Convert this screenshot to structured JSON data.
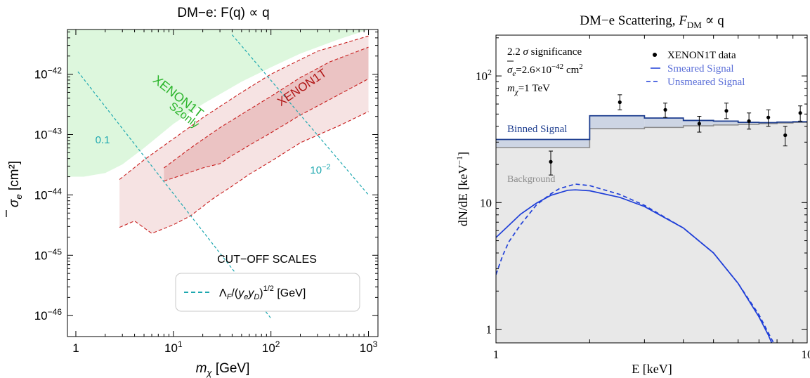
{
  "colors": {
    "green_fill": "#ddf7dd",
    "red_outer_fill": "#f6e3e3",
    "red_inner_fill": "#ebc3c3",
    "red_line": "#c81e1e",
    "cyan": "#1ea8b0",
    "green_text": "#2bb52b",
    "dark_red_text": "#b01515",
    "blue": "#1f3fd8",
    "navy": "#1d3d8f",
    "gray_line": "#8c8c8c",
    "bg_fill": "#e8e8e8",
    "signal_fill": "#cdd5e4"
  },
  "chart_data": [
    {
      "type": "line",
      "title_text": "DM−e:  F(q) ∝ q",
      "xlabel": "[GeV]",
      "xlabel_symbol": "m",
      "xlabel_sub": "χ",
      "ylabel": "[cm²]",
      "ylabel_symbol": "σ",
      "ylabel_sub": "e",
      "x_scale": "log",
      "y_scale": "log",
      "xlim": [
        0.82,
        1250
      ],
      "ylim": [
        4.5e-47,
        5.5e-42
      ],
      "x_ticks": [
        1,
        10,
        100,
        1000
      ],
      "x_tick_labels": [
        {
          "base": "1",
          "exp": ""
        },
        {
          "base": "10",
          "exp": "1"
        },
        {
          "base": "10",
          "exp": "2"
        },
        {
          "base": "10",
          "exp": "3"
        }
      ],
      "y_ticks": [
        1e-46,
        1e-45,
        1e-44,
        1e-43,
        1e-42
      ],
      "y_tick_labels": [
        {
          "base": "10",
          "exp": "−46"
        },
        {
          "base": "10",
          "exp": "−45"
        },
        {
          "base": "10",
          "exp": "−44"
        },
        {
          "base": "10",
          "exp": "−43"
        },
        {
          "base": "10",
          "exp": "−42"
        }
      ],
      "regions": {
        "s2only_boundary": [
          [
            0.82,
            2e-44
          ],
          [
            1.2,
            2e-44
          ],
          [
            2,
            2.3e-44
          ],
          [
            3,
            3.2e-44
          ],
          [
            5,
            6e-44
          ],
          [
            10,
            1.5e-43
          ],
          [
            20,
            3.2e-43
          ],
          [
            50,
            7.5e-43
          ],
          [
            100,
            1.3e-42
          ],
          [
            200,
            2.2e-42
          ],
          [
            500,
            3.8e-42
          ],
          [
            1000,
            5.5e-42
          ]
        ],
        "xenon1t_outer_upper": [
          [
            2.8,
            1.8e-44
          ],
          [
            5,
            3.8e-44
          ],
          [
            10,
            8.5e-44
          ],
          [
            20,
            1.9e-43
          ],
          [
            50,
            5e-43
          ],
          [
            100,
            1e-42
          ],
          [
            300,
            2.4e-42
          ],
          [
            1000,
            4.3e-42
          ]
        ],
        "xenon1t_outer_lower": [
          [
            2.8,
            2.9e-45
          ],
          [
            4,
            3.7e-45
          ],
          [
            6,
            2.3e-45
          ],
          [
            10,
            3.2e-45
          ],
          [
            15,
            4.5e-45
          ],
          [
            25,
            8.5e-45
          ],
          [
            40,
            1.4e-44
          ],
          [
            60,
            2.2e-44
          ],
          [
            100,
            3.6e-44
          ],
          [
            200,
            7.3e-44
          ],
          [
            500,
            1.4e-43
          ],
          [
            1000,
            2.4e-43
          ]
        ],
        "xenon1t_inner_upper": [
          [
            8,
            2.8e-44
          ],
          [
            15,
            6e-44
          ],
          [
            30,
            1.3e-43
          ],
          [
            60,
            2.6e-43
          ],
          [
            100,
            4.3e-43
          ],
          [
            200,
            8.8e-43
          ],
          [
            400,
            1.6e-42
          ],
          [
            1000,
            2.8e-42
          ]
        ],
        "xenon1t_inner_lower": [
          [
            8,
            1.7e-44
          ],
          [
            12,
            2.1e-44
          ],
          [
            20,
            2.8e-44
          ],
          [
            30,
            3.3e-44
          ],
          [
            40,
            4.5e-44
          ],
          [
            70,
            7.7e-44
          ],
          [
            100,
            1.07e-43
          ],
          [
            200,
            2.1e-43
          ],
          [
            400,
            3.8e-43
          ],
          [
            1000,
            8.4e-43
          ]
        ]
      },
      "cutoff_lines": [
        {
          "label": "0.1",
          "points": [
            [
              1.05,
              1.1e-42
            ],
            [
              100,
              9e-47
            ]
          ]
        },
        {
          "label": "10⁻²",
          "points": [
            [
              40,
              4.5e-42
            ],
            [
              1000,
              1e-44
            ]
          ]
        }
      ],
      "region_labels": [
        "XENON1T",
        "S2only",
        "XENON1T"
      ],
      "cutoff_title": "CUT−OFF SCALES",
      "legend_text": "Λ_F/(y_e y_D)^{1/2} [GeV]",
      "legend_position": "bottom-right"
    },
    {
      "type": "line",
      "title_text": "DM−e Scattering, ",
      "title_math": "F",
      "title_sub": "DM",
      "title_tail": " ∝ q",
      "xlabel": "E [keV]",
      "ylabel": "dN/dE [keV⁻¹]",
      "x_scale": "log",
      "y_scale": "log",
      "xlim": [
        1,
        10
      ],
      "ylim": [
        0.78,
        210
      ],
      "x_tick_labels": [
        "1",
        "10"
      ],
      "y_tick_labels": [
        "1",
        "10",
        "10²"
      ],
      "bin_edges": [
        1,
        2,
        3,
        4,
        5,
        6,
        7,
        8,
        9,
        10
      ],
      "background": [
        27.2,
        38.3,
        39.2,
        40.4,
        41.0,
        41.5,
        42.0,
        42.5,
        43.0
      ],
      "binned_signal": [
        31.5,
        48.5,
        46.5,
        44.5,
        44.0,
        43.0,
        42.8,
        43.2,
        43.5
      ],
      "xenon_data": [
        {
          "x": 1.5,
          "y": 21,
          "lo": 16.5,
          "hi": 25.5
        },
        {
          "x": 2.5,
          "y": 62,
          "lo": 54,
          "hi": 71
        },
        {
          "x": 3.5,
          "y": 54,
          "lo": 47,
          "hi": 61
        },
        {
          "x": 4.5,
          "y": 42,
          "lo": 36,
          "hi": 48
        },
        {
          "x": 5.5,
          "y": 53,
          "lo": 46,
          "hi": 61
        },
        {
          "x": 6.5,
          "y": 44,
          "lo": 38,
          "hi": 51
        },
        {
          "x": 7.5,
          "y": 47,
          "lo": 40,
          "hi": 54
        },
        {
          "x": 8.5,
          "y": 34,
          "lo": 28,
          "hi": 40
        },
        {
          "x": 9.5,
          "y": 51,
          "lo": 44,
          "hi": 58
        }
      ],
      "smeared_signal": [
        [
          1,
          5.3
        ],
        [
          1.1,
          6.6
        ],
        [
          1.2,
          8.1
        ],
        [
          1.35,
          9.9
        ],
        [
          1.5,
          11.4
        ],
        [
          1.7,
          12.5
        ],
        [
          1.8,
          12.6
        ],
        [
          2.0,
          12.4
        ],
        [
          2.5,
          11.0
        ],
        [
          3,
          9.3
        ],
        [
          4,
          6.3
        ],
        [
          5,
          4.0
        ],
        [
          6,
          2.3
        ],
        [
          7,
          1.25
        ],
        [
          7.5,
          0.9
        ],
        [
          8.0,
          0.62
        ]
      ],
      "unsmeared_signal": [
        [
          1,
          2.7
        ],
        [
          1.05,
          3.8
        ],
        [
          1.1,
          4.9
        ],
        [
          1.2,
          6.7
        ],
        [
          1.35,
          9.6
        ],
        [
          1.5,
          11.7
        ],
        [
          1.6,
          12.9
        ],
        [
          1.8,
          14.0
        ],
        [
          2.0,
          13.6
        ],
        [
          2.5,
          11.6
        ],
        [
          3,
          9.5
        ],
        [
          4,
          6.3
        ],
        [
          5,
          4.0
        ],
        [
          6,
          2.3
        ],
        [
          7,
          1.3
        ],
        [
          7.6,
          0.88
        ],
        [
          8.2,
          0.62
        ]
      ],
      "annotation_lines": [
        {
          "prefix": "2.2 ",
          "sym": "σ",
          "sym_sub": "",
          "rest": " significance",
          "sup": ""
        },
        {
          "prefix": "",
          "sym": "σ",
          "sym_sub": "e",
          "rest": "=2.6×10",
          "sup": "−42",
          "tail": " cm",
          "tail_sup": "2"
        },
        {
          "prefix": "",
          "sym": "m",
          "sym_sub": "χ",
          "rest": "=1 TeV",
          "sup": ""
        }
      ],
      "legend": [
        "XENON1T data",
        "Smeared Signal",
        "Unsmeared Signal"
      ],
      "legend_position": "top-right",
      "binned_signal_label": "Binned Signal",
      "background_label": "Background"
    }
  ]
}
